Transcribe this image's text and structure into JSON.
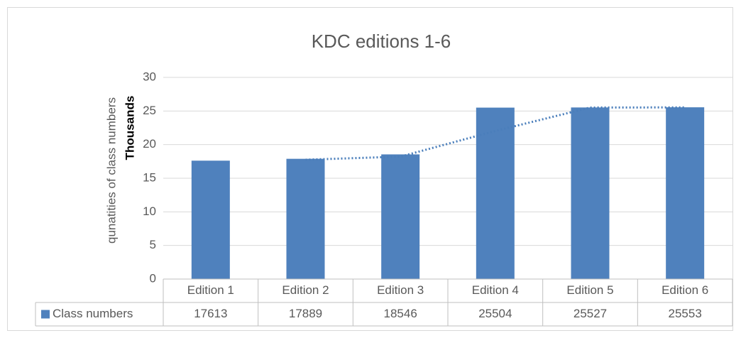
{
  "chart_data": {
    "type": "bar",
    "title": "KDC editions 1-6",
    "y_label": "qunatities of class numbers",
    "display_unit": "Thousands",
    "categories": [
      "Edition 1",
      "Edition 2",
      "Edition 3",
      "Edition 4",
      "Edition 5",
      "Edition 6"
    ],
    "series": [
      {
        "name": "Class numbers",
        "color": "#4f81bd",
        "values": [
          17613,
          17889,
          18546,
          25504,
          25527,
          25553
        ]
      }
    ],
    "ylim": [
      0,
      30000
    ],
    "yticks": [
      {
        "value": 0,
        "label": "0"
      },
      {
        "value": 5000,
        "label": "5"
      },
      {
        "value": 10000,
        "label": "10"
      },
      {
        "value": 15000,
        "label": "15"
      },
      {
        "value": 20000,
        "label": "20"
      },
      {
        "value": 25000,
        "label": "25"
      },
      {
        "value": 30000,
        "label": "30"
      }
    ],
    "grid": true,
    "data_table": true,
    "trendline": {
      "kind": "moving_average",
      "period": 2,
      "color": "#4a7ebb"
    }
  }
}
